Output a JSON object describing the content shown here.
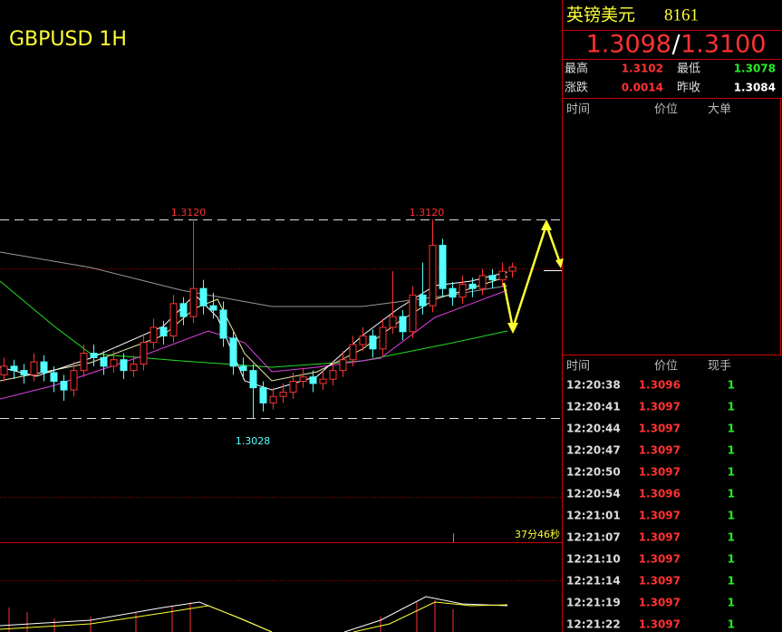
{
  "chart": {
    "title": "GBPUSD 1H",
    "countdown": "37分46秒",
    "levels": {
      "high": {
        "value": 1.312,
        "label": "1.3120"
      },
      "low": {
        "value": 1.3028,
        "label": "1.3028"
      }
    },
    "candles": [
      [
        1.3048,
        1.3056,
        1.3045,
        1.3052
      ],
      [
        1.3052,
        1.3055,
        1.3046,
        1.305
      ],
      [
        1.305,
        1.3053,
        1.3044,
        1.3048
      ],
      [
        1.3048,
        1.3058,
        1.3045,
        1.3054
      ],
      [
        1.3054,
        1.3057,
        1.3045,
        1.3049
      ],
      [
        1.3049,
        1.3052,
        1.304,
        1.3045
      ],
      [
        1.3045,
        1.3048,
        1.3036,
        1.3041
      ],
      [
        1.3041,
        1.3054,
        1.3038,
        1.305
      ],
      [
        1.305,
        1.3062,
        1.3047,
        1.3058
      ],
      [
        1.3058,
        1.3062,
        1.3052,
        1.3056
      ],
      [
        1.3056,
        1.3059,
        1.3048,
        1.3052
      ],
      [
        1.3052,
        1.3059,
        1.3049,
        1.3055
      ],
      [
        1.3055,
        1.3058,
        1.3046,
        1.305
      ],
      [
        1.305,
        1.3057,
        1.3047,
        1.3053
      ],
      [
        1.3053,
        1.3067,
        1.305,
        1.3063
      ],
      [
        1.3063,
        1.3074,
        1.306,
        1.307
      ],
      [
        1.307,
        1.3073,
        1.3062,
        1.3066
      ],
      [
        1.3066,
        1.3085,
        1.3063,
        1.3081
      ],
      [
        1.3081,
        1.3084,
        1.3071,
        1.3075
      ],
      [
        1.3075,
        1.312,
        1.3072,
        1.3088
      ],
      [
        1.3088,
        1.3092,
        1.3076,
        1.308
      ],
      [
        1.308,
        1.3086,
        1.3074,
        1.3078
      ],
      [
        1.3078,
        1.3082,
        1.3061,
        1.3065
      ],
      [
        1.3065,
        1.3068,
        1.3048,
        1.3052
      ],
      [
        1.3052,
        1.3056,
        1.3046,
        1.305
      ],
      [
        1.305,
        1.3053,
        1.3028,
        1.3042
      ],
      [
        1.3042,
        1.3045,
        1.3031,
        1.3035
      ],
      [
        1.3035,
        1.3042,
        1.3032,
        1.3038
      ],
      [
        1.3038,
        1.3044,
        1.3035,
        1.304
      ],
      [
        1.304,
        1.3049,
        1.3037,
        1.3045
      ],
      [
        1.3045,
        1.3051,
        1.3042,
        1.3047
      ],
      [
        1.3047,
        1.305,
        1.304,
        1.3044
      ],
      [
        1.3044,
        1.305,
        1.3041,
        1.3046
      ],
      [
        1.3046,
        1.3054,
        1.3043,
        1.305
      ],
      [
        1.305,
        1.3059,
        1.3047,
        1.3055
      ],
      [
        1.3055,
        1.3066,
        1.3052,
        1.3062
      ],
      [
        1.3062,
        1.307,
        1.3059,
        1.3066
      ],
      [
        1.3066,
        1.3069,
        1.3056,
        1.306
      ],
      [
        1.306,
        1.3074,
        1.3057,
        1.307
      ],
      [
        1.307,
        1.3096,
        1.3067,
        1.3075
      ],
      [
        1.3075,
        1.3078,
        1.3064,
        1.3068
      ],
      [
        1.3068,
        1.3089,
        1.3065,
        1.3085
      ],
      [
        1.3085,
        1.31,
        1.3076,
        1.308
      ],
      [
        1.308,
        1.312,
        1.3077,
        1.3108
      ],
      [
        1.3108,
        1.3111,
        1.3084,
        1.3088
      ],
      [
        1.3088,
        1.3091,
        1.308,
        1.3084
      ],
      [
        1.3084,
        1.3094,
        1.3081,
        1.309
      ],
      [
        1.309,
        1.3093,
        1.3084,
        1.3088
      ],
      [
        1.3088,
        1.3097,
        1.3085,
        1.3094
      ],
      [
        1.3094,
        1.3097,
        1.3088,
        1.3092
      ],
      [
        1.3092,
        1.31,
        1.3089,
        1.3096
      ],
      [
        1.3096,
        1.31,
        1.3093,
        1.3098
      ]
    ]
  },
  "quote": {
    "name": "英镑美元",
    "code": "8161",
    "bid": "1.3098",
    "separator": "/",
    "ask": "1.3100",
    "stats": [
      [
        {
          "label": "最高",
          "value": "1.3102"
        },
        {
          "label": "最低",
          "value": "1.3078"
        }
      ],
      [
        {
          "label": "涨跌",
          "value": "0.0014"
        },
        {
          "label": "昨收",
          "value": "1.3084"
        }
      ]
    ]
  },
  "big_orders": {
    "headers": [
      "时间",
      "价位",
      "大单"
    ]
  },
  "trades": {
    "headers": [
      "时间",
      "价位",
      "现手"
    ],
    "rows": [
      [
        "12:20:38",
        "1.3096",
        "1"
      ],
      [
        "12:20:41",
        "1.3097",
        "1"
      ],
      [
        "12:20:44",
        "1.3097",
        "1"
      ],
      [
        "12:20:47",
        "1.3097",
        "1"
      ],
      [
        "12:20:50",
        "1.3097",
        "1"
      ],
      [
        "12:20:54",
        "1.3096",
        "1"
      ],
      [
        "12:21:01",
        "1.3097",
        "1"
      ],
      [
        "12:21:07",
        "1.3097",
        "1"
      ],
      [
        "12:21:10",
        "1.3097",
        "1"
      ],
      [
        "12:21:14",
        "1.3097",
        "1"
      ],
      [
        "12:21:19",
        "1.3097",
        "1"
      ],
      [
        "12:21:22",
        "1.3097",
        "1"
      ]
    ]
  }
}
